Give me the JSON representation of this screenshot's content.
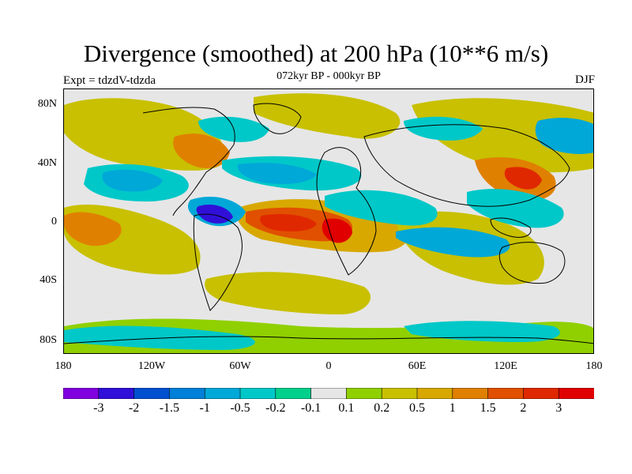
{
  "title": "Divergence (smoothed) at 200 hPa (10**6 m/s)",
  "subtitle": "072kyr BP - 000kyr BP",
  "experiment_label": "Expt = tdzdV-tdzda",
  "season_label": "DJF",
  "axes": {
    "lat_ticks": [
      "80N",
      "40N",
      "0",
      "40S",
      "80S"
    ],
    "lon_ticks": [
      "180",
      "120W",
      "60W",
      "0",
      "60E",
      "120E",
      "180"
    ]
  },
  "colorbar": {
    "labels": [
      "-3",
      "-2",
      "-1.5",
      "-1",
      "-0.5",
      "-0.2",
      "-0.1",
      "0.1",
      "0.2",
      "0.5",
      "1",
      "1.5",
      "2",
      "3"
    ],
    "colors": [
      "#8000e0",
      "#3010d8",
      "#0050d0",
      "#0080d8",
      "#00a8d8",
      "#00c8c8",
      "#00d08c",
      "#e6e6e6",
      "#90d000",
      "#c8c000",
      "#d8a800",
      "#e08000",
      "#e05000",
      "#e02800",
      "#e00000"
    ]
  },
  "map": {
    "type": "filled-contour",
    "projection": "cylindrical-equidistant",
    "background_color": "#e6e6e6",
    "coastline_color": "#000000"
  }
}
